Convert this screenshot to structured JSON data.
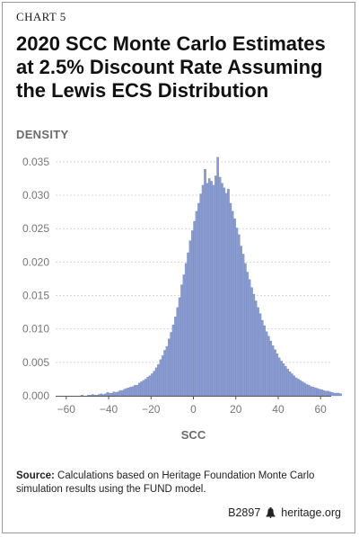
{
  "header": {
    "chart_number": "CHART 5",
    "title": "2020 SCC Monte Carlo Estimates at 2.5% Discount Rate Assuming the Lewis ECS Distribution"
  },
  "colors": {
    "bar": "#8a9ccf",
    "bar_edge": "#6f84c1",
    "grid": "#d9d9d9",
    "axis": "#555555"
  },
  "chart_data": {
    "type": "bar",
    "subtype": "histogram",
    "title": "2020 SCC Monte Carlo Estimates at 2.5% Discount Rate Assuming the Lewis ECS Distribution",
    "xlabel": "SCC",
    "ylabel": "DENSITY",
    "xlim": [
      -65,
      65
    ],
    "ylim": [
      0,
      0.037
    ],
    "x_ticks": [
      -60,
      -40,
      -20,
      0,
      20,
      40,
      60
    ],
    "x_tick_labels": [
      "−60",
      "−40",
      "−20",
      "0",
      "20",
      "40",
      "60"
    ],
    "y_ticks": [
      0.0,
      0.005,
      0.01,
      0.015,
      0.02,
      0.025,
      0.03,
      0.035
    ],
    "y_tick_labels": [
      "0.000",
      "0.005",
      "0.010",
      "0.015",
      "0.020",
      "0.025",
      "0.030",
      "0.035"
    ],
    "grid": "horizontal",
    "bin_width": 1,
    "bin_start": -60,
    "values": [
      0,
      0,
      0,
      0,
      0,
      0,
      0,
      0.0001,
      0,
      0,
      0.0001,
      0.0001,
      0.0002,
      0.0001,
      0.0001,
      0.0002,
      0.0003,
      0.0002,
      0.0003,
      0.0005,
      0.0004,
      0.0004,
      0.0006,
      0.0005,
      0.0006,
      0.0008,
      0.0008,
      0.001,
      0.0011,
      0.0012,
      0.0013,
      0.0014,
      0.0016,
      0.0016,
      0.0019,
      0.0021,
      0.0023,
      0.0025,
      0.0028,
      0.003,
      0.0033,
      0.0037,
      0.0042,
      0.0047,
      0.0054,
      0.006,
      0.0068,
      0.0074,
      0.0085,
      0.0095,
      0.0106,
      0.0118,
      0.0132,
      0.0147,
      0.0166,
      0.0181,
      0.0198,
      0.0214,
      0.0232,
      0.0247,
      0.0261,
      0.0276,
      0.0288,
      0.0302,
      0.0315,
      0.0339,
      0.0318,
      0.0325,
      0.0321,
      0.0315,
      0.0329,
      0.0357,
      0.0327,
      0.0318,
      0.0311,
      0.0303,
      0.0309,
      0.0288,
      0.0276,
      0.0265,
      0.0251,
      0.0241,
      0.0224,
      0.0212,
      0.0198,
      0.0185,
      0.0174,
      0.0162,
      0.0152,
      0.0142,
      0.0132,
      0.0123,
      0.0113,
      0.0105,
      0.0096,
      0.0089,
      0.0082,
      0.0075,
      0.0069,
      0.0063,
      0.0057,
      0.0052,
      0.0048,
      0.0044,
      0.004,
      0.0036,
      0.0033,
      0.003,
      0.0027,
      0.0025,
      0.0023,
      0.0021,
      0.0019,
      0.0017,
      0.0016,
      0.0014,
      0.0013,
      0.0012,
      0.0011,
      0.001,
      0.0009,
      0.0008,
      0.0007,
      0.0007,
      0.0006,
      0.0005,
      0.0004,
      0.0004,
      0.0004,
      0.0003
    ]
  },
  "source": {
    "label": "Source:",
    "text": " Calculations based on Heritage Foundation Monte Carlo simulation results using the FUND model."
  },
  "footer": {
    "code": "B2897",
    "icon": "liberty-bell-icon",
    "site": "heritage.org"
  }
}
